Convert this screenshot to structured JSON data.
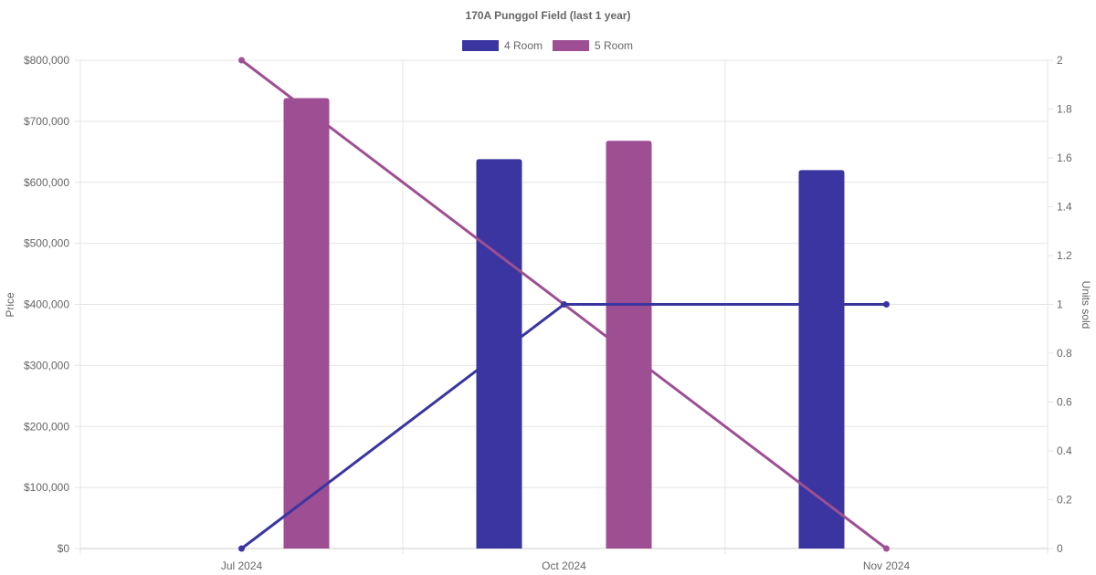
{
  "chart_data": {
    "type": "bar",
    "title": "170A Punggol Field (last 1 year)",
    "categories": [
      "Jul 2024",
      "Oct 2024",
      "Nov 2024"
    ],
    "legend_position": "top",
    "grid": true,
    "y_left": {
      "label": "Price",
      "range": [
        0,
        800000
      ],
      "tick_labels": [
        "$0",
        "$100,000",
        "$200,000",
        "$300,000",
        "$400,000",
        "$500,000",
        "$600,000",
        "$700,000",
        "$800,000"
      ]
    },
    "y_right": {
      "label": "Units sold",
      "range": [
        0,
        2
      ],
      "tick_labels": [
        "0",
        "0.2",
        "0.4",
        "0.6",
        "0.8",
        "1",
        "1.2",
        "1.4",
        "1.6",
        "1.8",
        "2"
      ]
    },
    "series": [
      {
        "name": "4 Room",
        "color": "#3a35a0",
        "price": [
          null,
          638000,
          620000
        ],
        "units_sold": [
          0,
          1,
          1
        ]
      },
      {
        "name": "5 Room",
        "color": "#9e4f93",
        "price": [
          738000,
          668000,
          null
        ],
        "units_sold": [
          2,
          null,
          0
        ]
      }
    ]
  }
}
